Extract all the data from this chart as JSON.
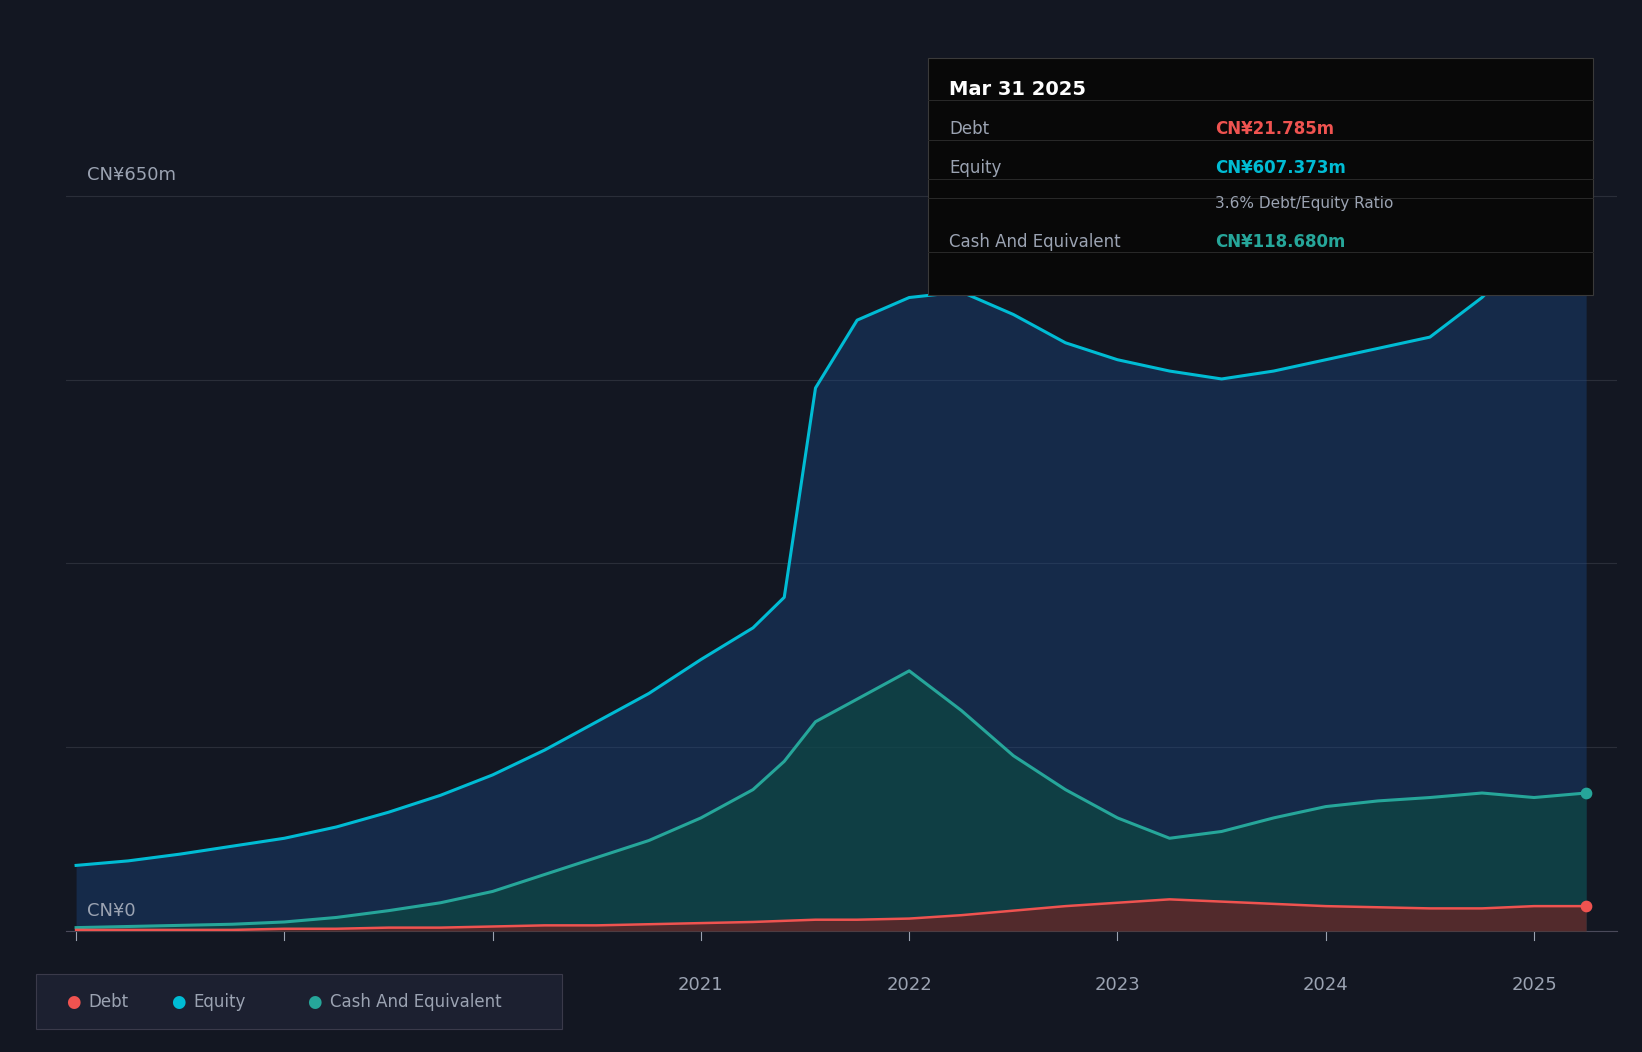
{
  "background_color": "#131722",
  "plot_bg_color": "#131722",
  "grid_color": "#2a2e39",
  "title_box_text": "Mar 31 2025",
  "tooltip_debt_label": "Debt",
  "tooltip_debt_value": "CN¥21.785m",
  "tooltip_debt_color": "#ef5350",
  "tooltip_equity_label": "Equity",
  "tooltip_equity_value": "CN¥607.373m",
  "tooltip_equity_color": "#00bcd4",
  "tooltip_ratio_text": "3.6% Debt/Equity Ratio",
  "tooltip_cash_label": "Cash And Equivalent",
  "tooltip_cash_value": "CN¥118.680m",
  "tooltip_cash_color": "#26a69a",
  "y_label_top": "CN¥650m",
  "y_label_zero": "CN¥0",
  "legend_debt_label": "Debt",
  "legend_equity_label": "Equity",
  "legend_cash_label": "Cash And Equivalent",
  "debt_color": "#ef5350",
  "equity_color": "#00bcd4",
  "cash_color": "#26a69a",
  "ylim": [
    0,
    730
  ],
  "y_grid_lines": [
    0,
    162.5,
    325,
    487.5,
    650
  ],
  "time_points": [
    2018.0,
    2018.25,
    2018.5,
    2018.75,
    2019.0,
    2019.25,
    2019.5,
    2019.75,
    2020.0,
    2020.25,
    2020.5,
    2020.75,
    2021.0,
    2021.25,
    2021.4,
    2021.55,
    2021.75,
    2022.0,
    2022.25,
    2022.5,
    2022.75,
    2023.0,
    2023.25,
    2023.5,
    2023.75,
    2024.0,
    2024.25,
    2024.5,
    2024.75,
    2025.0,
    2025.25
  ],
  "equity_values": [
    58,
    62,
    68,
    75,
    82,
    92,
    105,
    120,
    138,
    160,
    185,
    210,
    240,
    268,
    295,
    480,
    540,
    560,
    565,
    545,
    520,
    505,
    495,
    488,
    495,
    505,
    515,
    525,
    560,
    607,
    615
  ],
  "cash_values": [
    3,
    4,
    5,
    6,
    8,
    12,
    18,
    25,
    35,
    50,
    65,
    80,
    100,
    125,
    150,
    185,
    205,
    230,
    195,
    155,
    125,
    100,
    82,
    88,
    100,
    110,
    115,
    118,
    122,
    118,
    122
  ],
  "debt_values": [
    1,
    1,
    1,
    1,
    2,
    2,
    3,
    3,
    4,
    5,
    5,
    6,
    7,
    8,
    9,
    10,
    10,
    11,
    14,
    18,
    22,
    25,
    28,
    26,
    24,
    22,
    21,
    20,
    20,
    22,
    22
  ]
}
